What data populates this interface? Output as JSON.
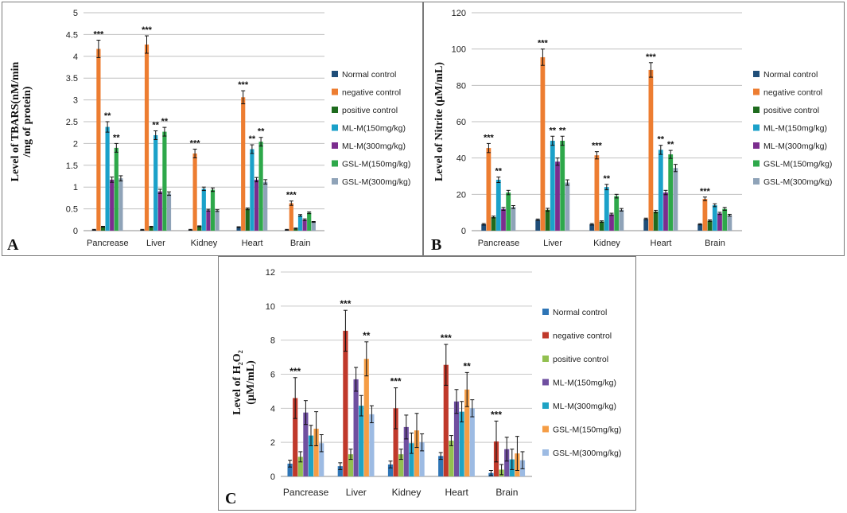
{
  "chart_data": [
    {
      "panel": "A",
      "type": "bar",
      "ylabel_line1": "Level of TBARS(nM/min",
      "ylabel_line2": "/mg of protein)",
      "ylim": [
        0,
        5
      ],
      "yticks": [
        "0",
        "0.5",
        "1",
        "1.5",
        "2",
        "2.5",
        "3",
        "3.5",
        "4",
        "4.5",
        "5"
      ],
      "categories": [
        "Pancrease",
        "Liver",
        "Kidney",
        "Heart",
        "Brain"
      ],
      "colors": [
        "#1f4e79",
        "#ed7d31",
        "#1e6b1e",
        "#1ba1c9",
        "#7b2d8e",
        "#2ea84a",
        "#8fa3b8"
      ],
      "series": [
        {
          "name": "Normal control",
          "values": [
            0.02,
            0.02,
            0.02,
            0.08,
            0.02
          ],
          "err": [
            0.01,
            0.01,
            0.01,
            0.01,
            0.01
          ]
        },
        {
          "name": "negative control",
          "values": [
            4.17,
            4.27,
            1.77,
            3.06,
            0.63
          ],
          "err": [
            0.2,
            0.2,
            0.1,
            0.15,
            0.05
          ]
        },
        {
          "name": "positive control",
          "values": [
            0.09,
            0.09,
            0.1,
            0.5,
            0.05
          ],
          "err": [
            0.01,
            0.01,
            0.01,
            0.02,
            0.01
          ]
        },
        {
          "name": "ML-M(150mg/kg)",
          "values": [
            2.38,
            2.19,
            0.96,
            1.87,
            0.35
          ],
          "err": [
            0.12,
            0.1,
            0.04,
            0.1,
            0.02
          ]
        },
        {
          "name": "ML-M(300mg/kg)",
          "values": [
            1.17,
            0.9,
            0.47,
            1.17,
            0.25
          ],
          "err": [
            0.06,
            0.05,
            0.02,
            0.05,
            0.02
          ]
        },
        {
          "name": "GSL-M(150mg/kg)",
          "values": [
            1.9,
            2.27,
            0.94,
            2.04,
            0.41
          ],
          "err": [
            0.1,
            0.1,
            0.04,
            0.1,
            0.02
          ]
        },
        {
          "name": "GSL-M(300mg/kg)",
          "values": [
            1.2,
            0.85,
            0.46,
            1.12,
            0.2
          ],
          "err": [
            0.06,
            0.04,
            0.02,
            0.05,
            0.01
          ]
        }
      ],
      "annotations": [
        {
          "category": 0,
          "series": 1,
          "text": "***"
        },
        {
          "category": 0,
          "series": 3,
          "text": "**"
        },
        {
          "category": 0,
          "series": 5,
          "text": "**"
        },
        {
          "category": 1,
          "series": 1,
          "text": "***"
        },
        {
          "category": 1,
          "series": 3,
          "text": "**"
        },
        {
          "category": 1,
          "series": 5,
          "text": "**"
        },
        {
          "category": 2,
          "series": 1,
          "text": "***"
        },
        {
          "category": 3,
          "series": 1,
          "text": "***"
        },
        {
          "category": 3,
          "series": 3,
          "text": "**"
        },
        {
          "category": 3,
          "series": 5,
          "text": "**"
        },
        {
          "category": 4,
          "series": 1,
          "text": "***"
        }
      ]
    },
    {
      "panel": "B",
      "type": "bar",
      "ylabel_line1": "Level of Nitrite (µM/mL)",
      "ylabel_line2": "",
      "ylim": [
        0,
        120
      ],
      "yticks": [
        "0",
        "20",
        "40",
        "60",
        "80",
        "100",
        "120"
      ],
      "categories": [
        "Pancrease",
        "Liver",
        "Kidney",
        "Heart",
        "Brain"
      ],
      "colors": [
        "#1f4e79",
        "#ed7d31",
        "#1e6b1e",
        "#1ba1c9",
        "#7b2d8e",
        "#2ea84a",
        "#8fa3b8"
      ],
      "series": [
        {
          "name": "Normal control",
          "values": [
            3.5,
            6,
            3.5,
            6.5,
            3.5
          ],
          "err": [
            0.4,
            0.4,
            0.4,
            0.4,
            0.3
          ]
        },
        {
          "name": "negative control",
          "values": [
            45.5,
            95.5,
            41.5,
            88.5,
            17.5
          ],
          "err": [
            2.5,
            4.5,
            2,
            4,
            1
          ]
        },
        {
          "name": "positive control",
          "values": [
            7.5,
            11.5,
            5,
            10.5,
            5.5
          ],
          "err": [
            0.5,
            0.8,
            0.4,
            0.7,
            0.4
          ]
        },
        {
          "name": "ML-M(150mg/kg)",
          "values": [
            28,
            49.5,
            24,
            44.5,
            14
          ],
          "err": [
            1.5,
            2.5,
            1.5,
            2.5,
            0.8
          ]
        },
        {
          "name": "ML-M(300mg/kg)",
          "values": [
            12,
            38,
            9,
            21,
            9.5
          ],
          "err": [
            0.8,
            2,
            0.6,
            1.2,
            0.6
          ]
        },
        {
          "name": "GSL-M(150mg/kg)",
          "values": [
            21,
            49.5,
            19,
            42,
            12
          ],
          "err": [
            1.2,
            2.5,
            1,
            2.2,
            0.8
          ]
        },
        {
          "name": "GSL-M(300mg/kg)",
          "values": [
            13,
            26.5,
            11.5,
            34.5,
            8.5
          ],
          "err": [
            0.8,
            1.5,
            0.7,
            2,
            0.5
          ]
        }
      ],
      "annotations": [
        {
          "category": 0,
          "series": 1,
          "text": "***"
        },
        {
          "category": 0,
          "series": 3,
          "text": "**"
        },
        {
          "category": 1,
          "series": 1,
          "text": "***"
        },
        {
          "category": 1,
          "series": 3,
          "text": "**"
        },
        {
          "category": 1,
          "series": 5,
          "text": "**"
        },
        {
          "category": 2,
          "series": 1,
          "text": "***"
        },
        {
          "category": 2,
          "series": 3,
          "text": "**"
        },
        {
          "category": 3,
          "series": 1,
          "text": "***"
        },
        {
          "category": 3,
          "series": 3,
          "text": "**"
        },
        {
          "category": 3,
          "series": 5,
          "text": "**"
        },
        {
          "category": 4,
          "series": 1,
          "text": "***"
        }
      ]
    },
    {
      "panel": "C",
      "type": "bar",
      "ylabel_line1": "Level of H₂O₂",
      "ylabel_line2": "(µM/mL)",
      "ylim": [
        0,
        12
      ],
      "yticks": [
        "0",
        "2",
        "4",
        "6",
        "8",
        "10",
        "12"
      ],
      "categories": [
        "Pancrease",
        "Liver",
        "Kidney",
        "Heart",
        "Brain"
      ],
      "colors": [
        "#2e75b6",
        "#c0392b",
        "#92c050",
        "#6f4fa0",
        "#1fa3c4",
        "#f59d45",
        "#9dbbe3"
      ],
      "series": [
        {
          "name": "Normal control",
          "values": [
            0.75,
            0.6,
            0.7,
            1.2,
            0.2
          ],
          "err": [
            0.2,
            0.2,
            0.2,
            0.2,
            0.15
          ]
        },
        {
          "name": "negative control",
          "values": [
            4.6,
            8.55,
            4,
            6.55,
            2.05
          ],
          "err": [
            1.2,
            1.2,
            1.2,
            1.2,
            1.2
          ]
        },
        {
          "name": "positive control",
          "values": [
            1.15,
            1.3,
            1.3,
            2.1,
            0.4
          ],
          "err": [
            0.3,
            0.3,
            0.3,
            0.3,
            0.3
          ]
        },
        {
          "name": "ML-M(150mg/kg)",
          "values": [
            3.75,
            5.7,
            2.9,
            4.4,
            1.6
          ],
          "err": [
            0.7,
            0.7,
            0.7,
            0.7,
            0.7
          ]
        },
        {
          "name": "ML-M(300mg/kg)",
          "values": [
            2.4,
            4.15,
            1.95,
            3.8,
            1.0
          ],
          "err": [
            0.6,
            0.6,
            0.6,
            0.6,
            0.6
          ]
        },
        {
          "name": "GSL-M(150mg/kg)",
          "values": [
            2.8,
            6.9,
            2.7,
            5.1,
            1.35
          ],
          "err": [
            1.0,
            1.0,
            1.0,
            1.0,
            1.0
          ]
        },
        {
          "name": "GSL-M(300mg/kg)",
          "values": [
            1.95,
            3.65,
            2.0,
            4.0,
            0.95
          ],
          "err": [
            0.5,
            0.5,
            0.5,
            0.5,
            0.5
          ]
        }
      ],
      "annotations": [
        {
          "category": 0,
          "series": 1,
          "text": "***"
        },
        {
          "category": 1,
          "series": 1,
          "text": "***"
        },
        {
          "category": 1,
          "series": 5,
          "text": "**"
        },
        {
          "category": 2,
          "series": 1,
          "text": "***"
        },
        {
          "category": 3,
          "series": 1,
          "text": "***"
        },
        {
          "category": 3,
          "series": 5,
          "text": "**"
        },
        {
          "category": 4,
          "series": 1,
          "text": "***"
        }
      ]
    }
  ],
  "panel_labels": [
    "A",
    "B",
    "C"
  ]
}
